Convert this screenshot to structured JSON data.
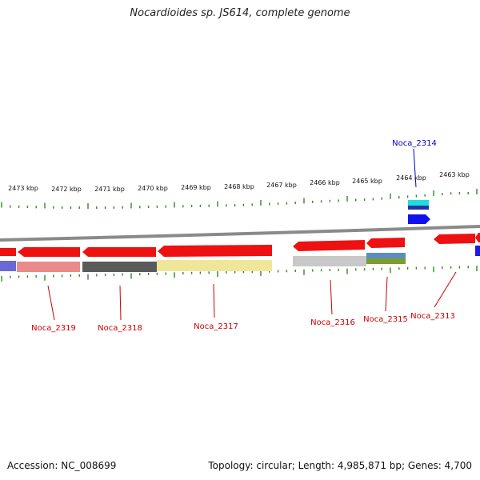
{
  "title": "Nocardioides sp. JS614, complete genome",
  "footer": {
    "accession": "Accession: NC_008699",
    "summary": "Topology: circular; Length: 4,985,871 bp; Genes: 4,700"
  },
  "colors": {
    "backbone": "#8a8a8a",
    "tick": "#2e8b1e",
    "gene_forward": "#ee1111",
    "label_red": "#cc0000",
    "label_blue": "#0000cc"
  },
  "kbp_labels": [
    "2473 kbp",
    "2472 kbp",
    "2471 kbp",
    "2470 kbp",
    "2469 kbp",
    "2468 kbp",
    "2467 kbp",
    "2466 kbp",
    "2465 kbp",
    "2464 kbp",
    "2463 kbp"
  ],
  "genes": [
    {
      "name": "Noca_2319",
      "label_color": "red"
    },
    {
      "name": "Noca_2318",
      "label_color": "red"
    },
    {
      "name": "Noca_2317",
      "label_color": "red"
    },
    {
      "name": "Noca_2316",
      "label_color": "red"
    },
    {
      "name": "Noca_2315",
      "label_color": "red"
    },
    {
      "name": "Noca_2314",
      "label_color": "blue"
    },
    {
      "name": "Noca_2313",
      "label_color": "red"
    }
  ]
}
